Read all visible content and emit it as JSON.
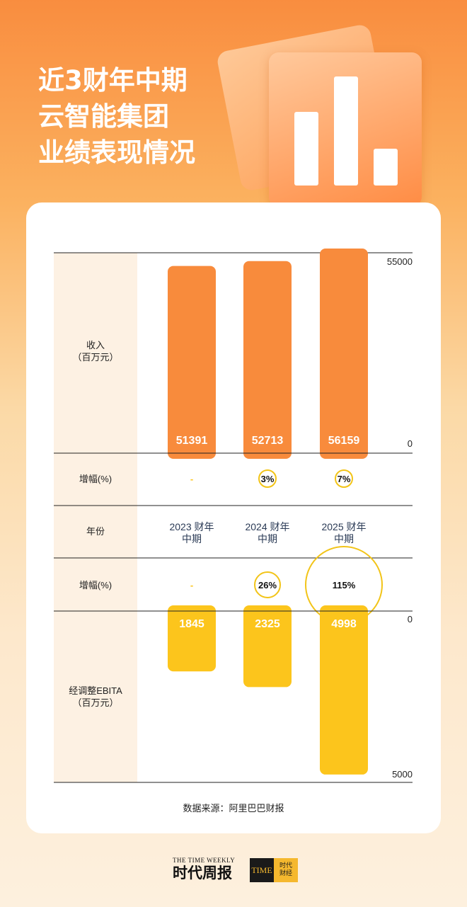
{
  "title_lines": [
    "近3财年中期",
    "云智能集团",
    "业绩表现情况"
  ],
  "colors": {
    "revenue": "#f88b3c",
    "ebita": "#fcc51c",
    "label_band": "#fdf1e3",
    "circle": "#f2c418"
  },
  "chart_data": {
    "type": "bar",
    "categories": [
      "2023 财年\n中期",
      "2024 财年\n中期",
      "2025 财年\n中期"
    ],
    "series": [
      {
        "name": "收入\n（百万元）",
        "values": [
          51391,
          52713,
          56159
        ],
        "value_labels": [
          "51391",
          "52713",
          "56159"
        ],
        "axis_labels": [
          "55000",
          "0"
        ],
        "ylim": [
          0,
          55000
        ]
      },
      {
        "name": "经调整EBITA\n（百万元）",
        "values": [
          1845,
          2325,
          4998
        ],
        "value_labels": [
          "1845",
          "2325",
          "4998"
        ],
        "axis_labels": [
          "0",
          "5000"
        ],
        "ylim": [
          0,
          5000
        ]
      }
    ],
    "rows": {
      "revenue_growth": {
        "label": "增幅(%)",
        "values": [
          "-",
          "3%",
          "7%"
        ]
      },
      "year": {
        "label": "年份"
      },
      "ebita_growth": {
        "label": "增幅(%)",
        "values": [
          "-",
          "26%",
          "115%"
        ]
      }
    }
  },
  "source": "数据来源：阿里巴巴财报",
  "footer": {
    "small": "THE TIME WEEKLY",
    "brand": "时代周报",
    "logo_mark": "TIME",
    "logo_text": [
      "时代",
      "财经"
    ]
  }
}
